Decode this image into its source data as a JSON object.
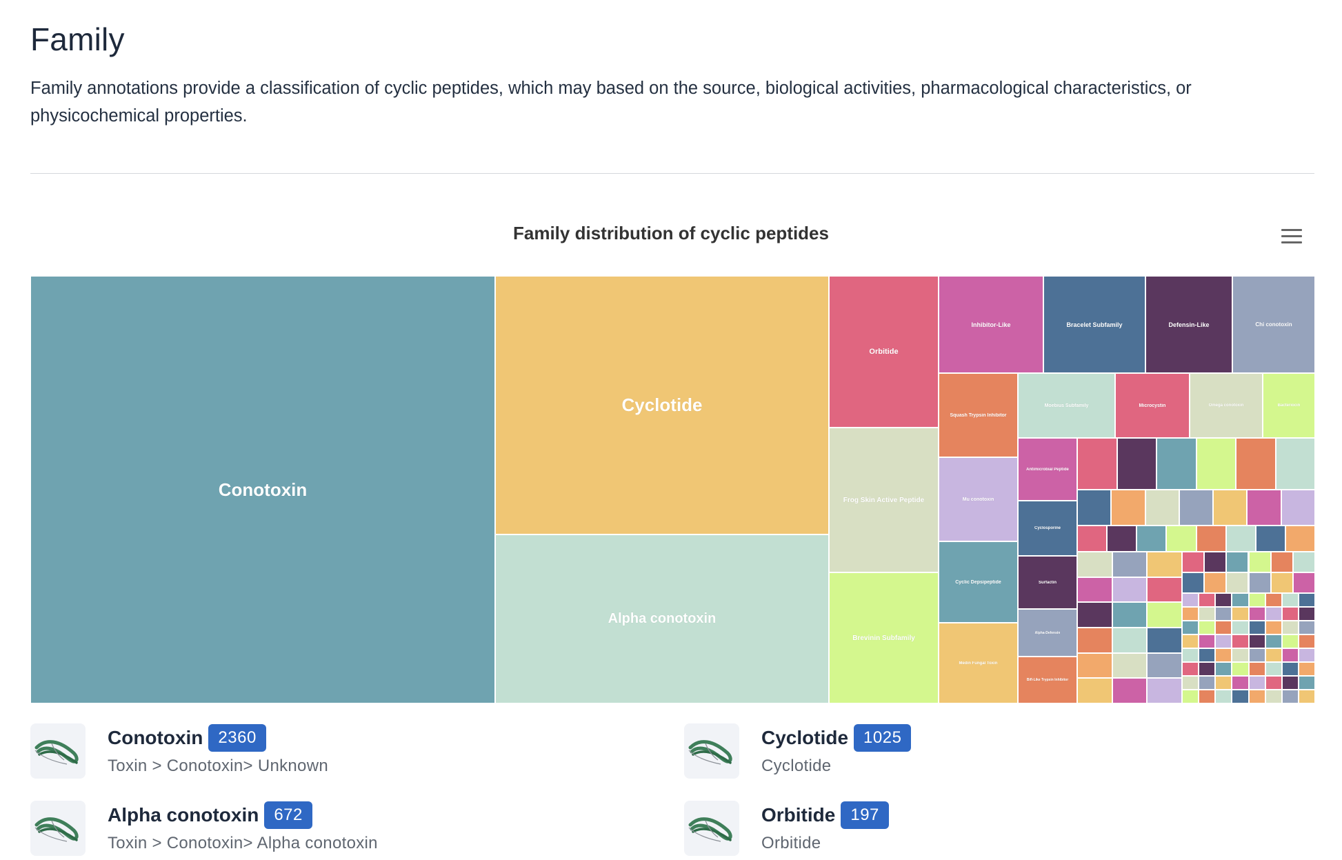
{
  "page": {
    "title": "Family",
    "intro": "Family annotations provide a classification of cyclic peptides, which may based on the source, biological activities, pharmacological characteristics, or physicochemical properties."
  },
  "chart": {
    "title": "Family distribution of cyclic peptides",
    "menu_icon": "hamburger-menu-icon"
  },
  "chart_data": {
    "type": "treemap",
    "title": "Family distribution of cyclic peptides",
    "values": [
      {
        "name": "Conotoxin",
        "value": 2360
      },
      {
        "name": "Cyclotide",
        "value": 1025
      },
      {
        "name": "Alpha conotoxin",
        "value": 672
      },
      {
        "name": "Orbitide",
        "value": 197
      },
      {
        "name": "Frog Skin Active Peptide"
      },
      {
        "name": "Brevinin Subfamily"
      },
      {
        "name": "Inhibitor-Like"
      },
      {
        "name": "Bracelet Subfamily"
      },
      {
        "name": "Defensin-Like"
      },
      {
        "name": "Chi conotoxin"
      },
      {
        "name": "Squash Trypsin Inhibitor"
      },
      {
        "name": "Moebius Subfamily"
      },
      {
        "name": "Microcystin"
      },
      {
        "name": "Omega conotoxin"
      },
      {
        "name": "Bacteriocin"
      },
      {
        "name": "Mu conotoxin"
      },
      {
        "name": "Cyclic Depsipeptide"
      },
      {
        "name": "Medin Fungal Toxin"
      },
      {
        "name": "Antimicrobial Peptide"
      },
      {
        "name": "Cyclosporine"
      },
      {
        "name": "Surfactin"
      },
      {
        "name": "Alpha-Defensin"
      },
      {
        "name": "Bifl-Like Trypsin Inhibitor"
      }
    ]
  },
  "colors": {
    "palette": [
      "#6fa3b0",
      "#f0c674",
      "#c2dfd2",
      "#e06680",
      "#d8dfc3",
      "#d4f78e",
      "#cc62a6",
      "#4d7196",
      "#5a375e",
      "#96a3bc",
      "#e5845e",
      "#c8b6e0",
      "#f2a96b"
    ],
    "badge": "#2f68c4"
  },
  "families": [
    {
      "name": "Conotoxin",
      "count": "2360",
      "path": "Toxin > Conotoxin> Unknown",
      "icon": "peptide-structure-icon"
    },
    {
      "name": "Cyclotide",
      "count": "1025",
      "path": "Cyclotide",
      "icon": "peptide-structure-icon"
    },
    {
      "name": "Alpha conotoxin",
      "count": "672",
      "path": "Toxin > Conotoxin> Alpha conotoxin",
      "icon": "peptide-structure-icon"
    },
    {
      "name": "Orbitide",
      "count": "197",
      "path": "Orbitide",
      "icon": "peptide-structure-icon"
    }
  ]
}
